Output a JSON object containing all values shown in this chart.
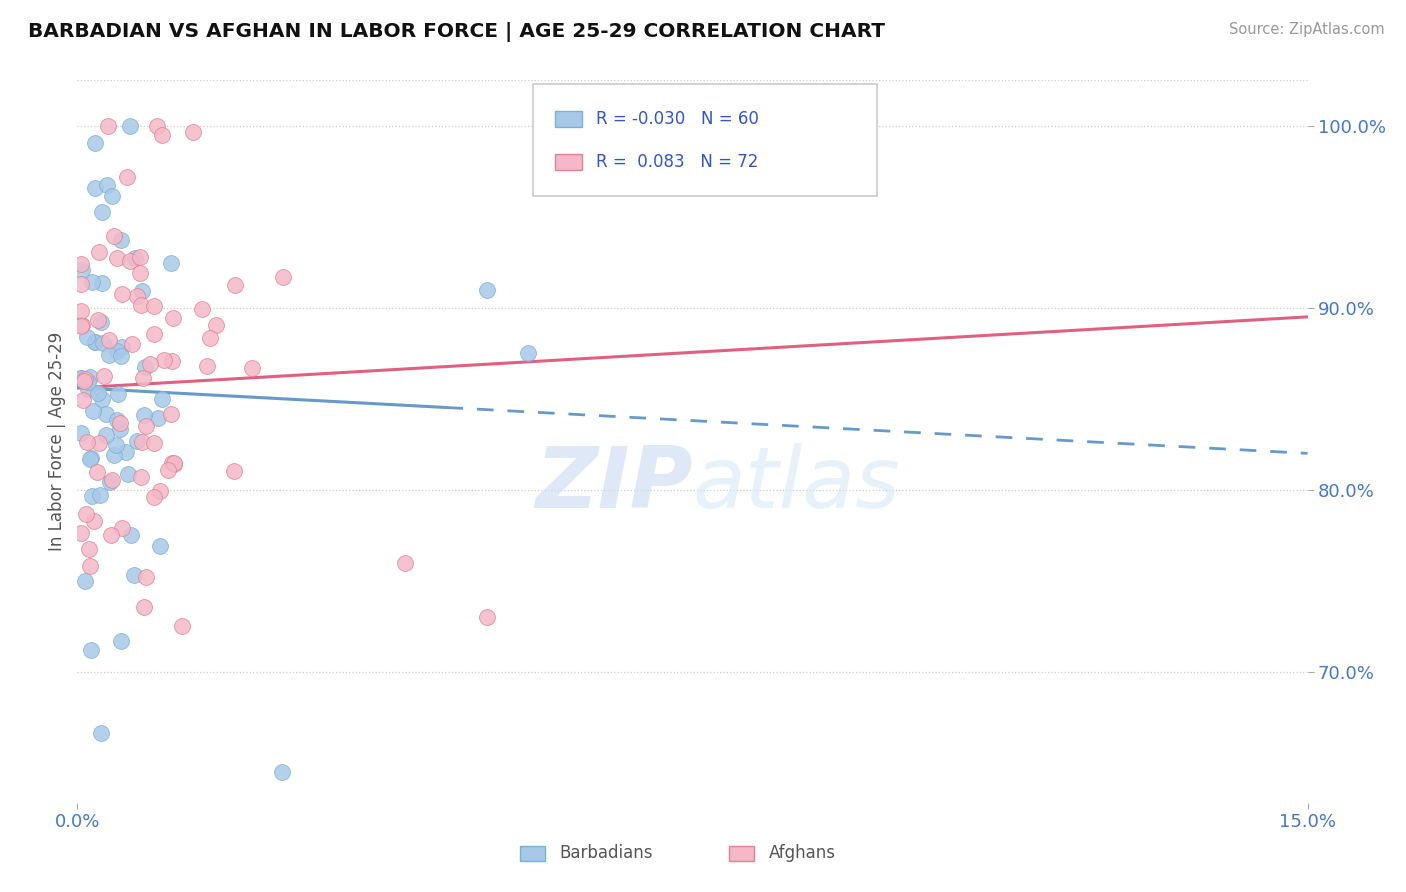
{
  "title": "BARBADIAN VS AFGHAN IN LABOR FORCE | AGE 25-29 CORRELATION CHART",
  "source": "Source: ZipAtlas.com",
  "ylabel_label": "In Labor Force | Age 25-29",
  "xmin": 0.0,
  "xmax": 0.15,
  "ymin": 0.628,
  "ymax": 1.025,
  "yticks": [
    0.7,
    0.8,
    0.9,
    1.0
  ],
  "ytick_labels": [
    "70.0%",
    "80.0%",
    "90.0%",
    "100.0%"
  ],
  "xticks": [
    0.0,
    0.15
  ],
  "xtick_labels": [
    "0.0%",
    "15.0%"
  ],
  "r_barbadian": -0.03,
  "n_barbadian": 60,
  "r_afghan": 0.083,
  "n_afghan": 72,
  "color_barbadian": "#a8c8e8",
  "color_barbadian_edge": "#7ab0d4",
  "color_afghan": "#f4b8c8",
  "color_afghan_edge": "#e08090",
  "color_line_barbadian": "#6699cc",
  "color_line_afghan": "#e06080",
  "legend_text_color": "#3355cc",
  "tick_color": "#4477cc",
  "watermark": "ZIPatlas"
}
